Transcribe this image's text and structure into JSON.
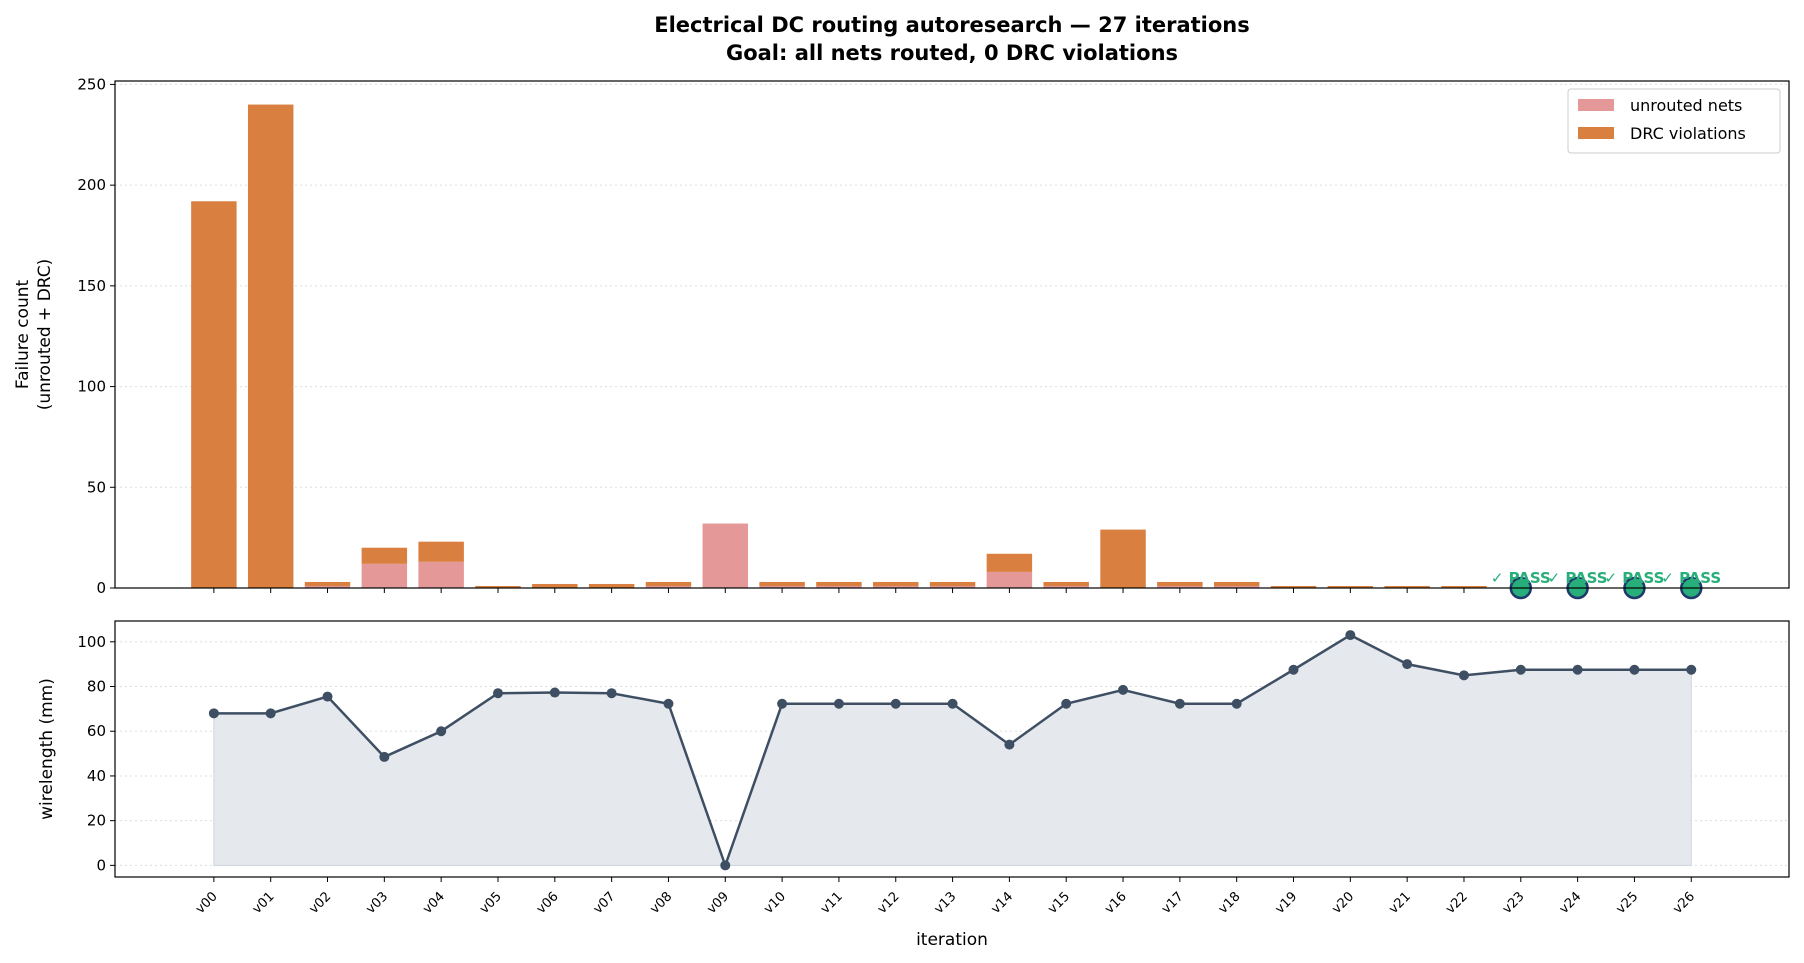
{
  "chart_data": [
    {
      "type": "bar",
      "stacked": true,
      "title": "Electrical DC routing autoresearch — 27 iterations",
      "subtitle": "Goal: all nets routed, 0 DRC violations",
      "xlabel": "",
      "ylabel": "Failure count\n(unrouted + DRC)",
      "ylim": [
        0,
        251.7
      ],
      "yticks": [
        0,
        50,
        100,
        150,
        200,
        250
      ],
      "grid": "y-dotted",
      "legend": "top-right",
      "categories": [
        "v00",
        "v01",
        "v02",
        "v03",
        "v04",
        "v05",
        "v06",
        "v07",
        "v08",
        "v09",
        "v10",
        "v11",
        "v12",
        "v13",
        "v14",
        "v15",
        "v16",
        "v17",
        "v18",
        "v19",
        "v20",
        "v21",
        "v22",
        "v23",
        "v24",
        "v25",
        "v26"
      ],
      "series": [
        {
          "name": "unrouted nets",
          "color": "#e49898",
          "values": [
            0,
            0,
            1,
            12,
            13,
            0,
            0,
            0,
            1,
            32,
            1,
            1,
            1,
            1,
            8,
            1,
            0,
            1,
            1,
            0,
            0,
            0,
            0,
            0,
            0,
            0,
            0
          ]
        },
        {
          "name": "DRC violations",
          "color": "#d97f3f",
          "values": [
            192,
            240,
            2,
            8,
            10,
            1,
            2,
            2,
            2,
            0,
            2,
            2,
            2,
            2,
            9,
            2,
            29,
            2,
            2,
            1,
            1,
            1,
            1,
            0,
            0,
            0,
            0
          ]
        }
      ],
      "pass_marker": {
        "label": "✓ PASS",
        "iterations": [
          "v23",
          "v24",
          "v25",
          "v26"
        ],
        "color": "#27ae7a",
        "edge_color": "#1f3a6a"
      }
    },
    {
      "type": "area",
      "xlabel": "iteration",
      "ylabel": "wirelength (mm)",
      "ylim": [
        -5.2,
        109.3
      ],
      "yticks": [
        0,
        20,
        40,
        60,
        80,
        100
      ],
      "grid": "y-dotted",
      "line_color": "#3f4f63",
      "fill_color": "#e5e9ee",
      "categories": [
        "v00",
        "v01",
        "v02",
        "v03",
        "v04",
        "v05",
        "v06",
        "v07",
        "v08",
        "v09",
        "v10",
        "v11",
        "v12",
        "v13",
        "v14",
        "v15",
        "v16",
        "v17",
        "v18",
        "v19",
        "v20",
        "v21",
        "v22",
        "v23",
        "v24",
        "v25",
        "v26"
      ],
      "values": [
        68,
        68,
        75.5,
        48.5,
        60,
        77,
        77.3,
        77,
        72.3,
        0,
        72.3,
        72.3,
        72.3,
        72.3,
        54,
        72.3,
        78.5,
        72.3,
        72.3,
        87.5,
        103,
        90,
        85,
        87.5,
        87.5,
        87.5,
        87.5
      ]
    }
  ]
}
